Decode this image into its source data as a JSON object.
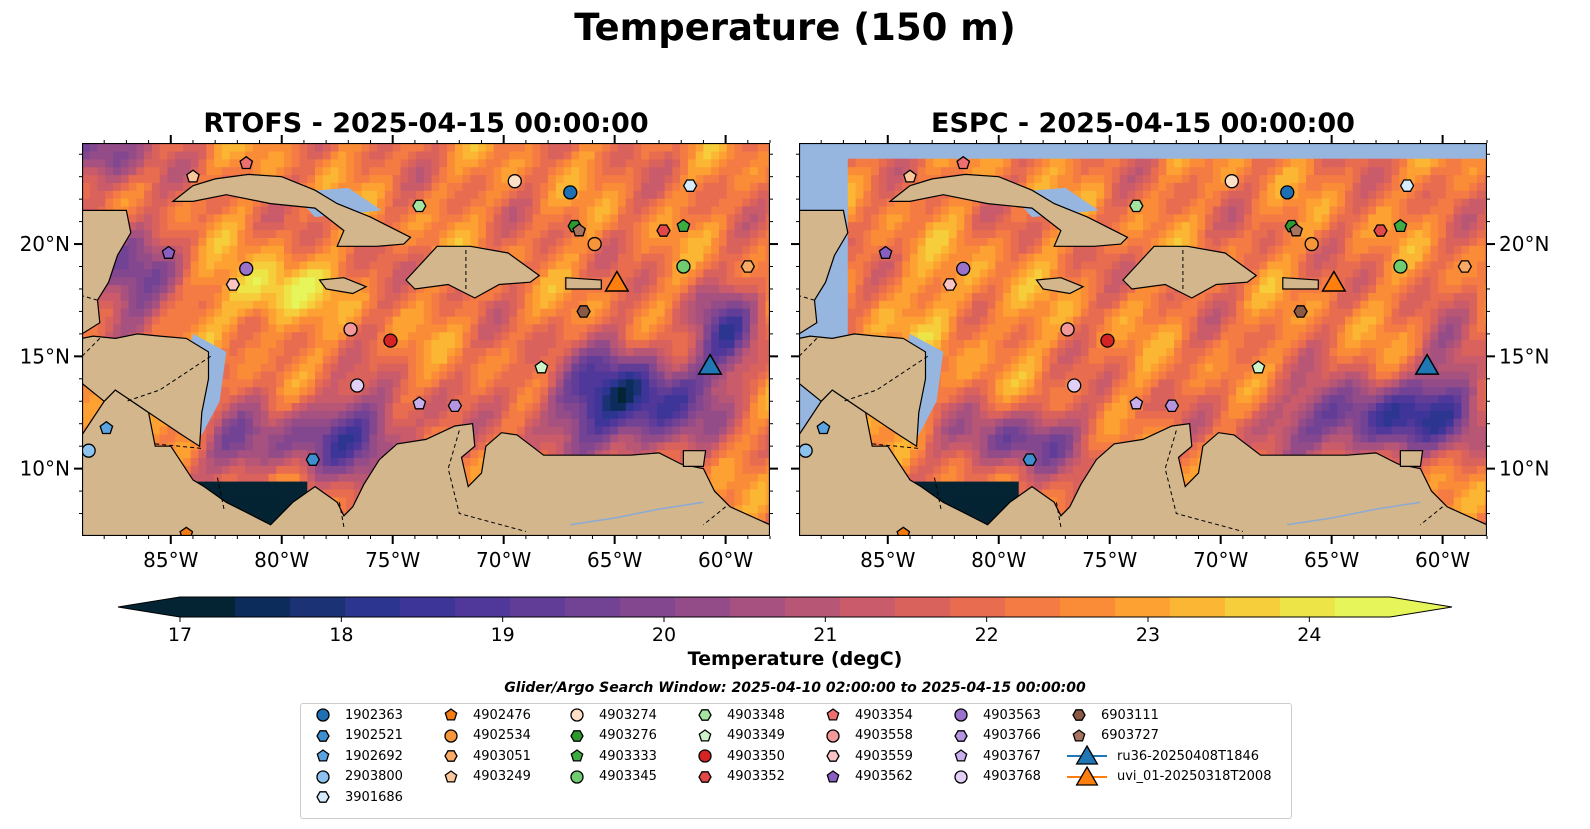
{
  "title": "Temperature (150 m)",
  "panels": [
    {
      "title": "RTOFS - 2025-04-15 00:00:00"
    },
    {
      "title": "ESPC - 2025-04-15 00:00:00"
    }
  ],
  "map_extent": {
    "lon": [
      -89,
      -58
    ],
    "lat": [
      7,
      24.5
    ]
  },
  "lon_ticks": [
    "85°W",
    "80°W",
    "75°W",
    "70°W",
    "65°W",
    "60°W"
  ],
  "lat_ticks": [
    "20°N",
    "15°N",
    "10°N"
  ],
  "colorbar": {
    "label": "Temperature (degC)",
    "ticks": [
      "17",
      "18",
      "19",
      "20",
      "21",
      "22",
      "23",
      "24"
    ],
    "range": [
      17,
      24.5
    ],
    "extend": "both",
    "colormap": "thermal",
    "colors": [
      "#042333",
      "#0c2d5b",
      "#1b3275",
      "#2c3690",
      "#3e3599",
      "#50389a",
      "#613d98",
      "#724295",
      "#82478f",
      "#944c88",
      "#a6517f",
      "#b75675",
      "#c95b6a",
      "#d9625d",
      "#e86c4f",
      "#f47b43",
      "#fa8c38",
      "#fca132",
      "#fbb733",
      "#f6cd3b",
      "#ede447",
      "#e6f55a"
    ]
  },
  "legend": {
    "title": "Glider/Argo Search Window: 2025-04-10 02:00:00 to 2025-04-15 00:00:00",
    "entries": [
      {
        "label": "1902363",
        "marker": "circle",
        "color": "#1f6fb3"
      },
      {
        "label": "1902521",
        "marker": "hexagon",
        "color": "#3d8fd0"
      },
      {
        "label": "1902692",
        "marker": "pentagon",
        "color": "#5aa3e0"
      },
      {
        "label": "2903800",
        "marker": "circle",
        "color": "#8ec2ee"
      },
      {
        "label": "3901686",
        "marker": "hexagon",
        "color": "#d6ebfb"
      },
      {
        "label": "4902476",
        "marker": "pentagon",
        "color": "#f47b12"
      },
      {
        "label": "4902534",
        "marker": "circle",
        "color": "#f7953a"
      },
      {
        "label": "4903051",
        "marker": "hexagon",
        "color": "#f9ab65"
      },
      {
        "label": "4903249",
        "marker": "pentagon",
        "color": "#fbc79a"
      },
      {
        "label": "4903274",
        "marker": "circle",
        "color": "#fde0c5"
      },
      {
        "label": "4903276",
        "marker": "hexagon",
        "color": "#2e9a2e"
      },
      {
        "label": "4903333",
        "marker": "pentagon",
        "color": "#3eac44"
      },
      {
        "label": "4903345",
        "marker": "circle",
        "color": "#6fcc6f"
      },
      {
        "label": "4903348",
        "marker": "hexagon",
        "color": "#a4e3a0"
      },
      {
        "label": "4903349",
        "marker": "pentagon",
        "color": "#cdf3c8"
      },
      {
        "label": "4903350",
        "marker": "circle",
        "color": "#d62424"
      },
      {
        "label": "4903352",
        "marker": "hexagon",
        "color": "#e24848"
      },
      {
        "label": "4903354",
        "marker": "pentagon",
        "color": "#ee6f6f"
      },
      {
        "label": "4903558",
        "marker": "circle",
        "color": "#f49999"
      },
      {
        "label": "4903559",
        "marker": "hexagon",
        "color": "#f9c4c4"
      },
      {
        "label": "4903562",
        "marker": "pentagon",
        "color": "#8a5fc4"
      },
      {
        "label": "4903563",
        "marker": "circle",
        "color": "#9a72cc"
      },
      {
        "label": "4903766",
        "marker": "hexagon",
        "color": "#b595e0"
      },
      {
        "label": "4903767",
        "marker": "pentagon",
        "color": "#c9b0ec"
      },
      {
        "label": "4903768",
        "marker": "circle",
        "color": "#e2cff6"
      },
      {
        "label": "6903111",
        "marker": "hexagon",
        "color": "#8b5a44"
      },
      {
        "label": "6903727",
        "marker": "pentagon",
        "color": "#a87460"
      },
      {
        "label": "ru36-20250408T1846",
        "marker": "triangle",
        "color": "#1f77b4"
      },
      {
        "label": "uvi_01-20250318T2008",
        "marker": "triangle",
        "color": "#ff7f0e"
      }
    ]
  },
  "observations": [
    {
      "lon": -67.0,
      "lat": 22.3,
      "id": 0
    },
    {
      "lon": -88.7,
      "lat": 10.8,
      "id": 3
    },
    {
      "lon": -87.9,
      "lat": 11.8,
      "id": 2
    },
    {
      "lon": -84.3,
      "lat": 7.1,
      "id": 5
    },
    {
      "lon": -84.0,
      "lat": 23.0,
      "id": 8
    },
    {
      "lon": -85.1,
      "lat": 19.6,
      "id": 20
    },
    {
      "lon": -81.6,
      "lat": 18.9,
      "id": 21
    },
    {
      "lon": -82.2,
      "lat": 18.2,
      "id": 19
    },
    {
      "lon": -81.6,
      "lat": 23.6,
      "id": 17
    },
    {
      "lon": -73.8,
      "lat": 21.7,
      "id": 13
    },
    {
      "lon": -69.5,
      "lat": 22.8,
      "id": 9
    },
    {
      "lon": -66.8,
      "lat": 20.8,
      "id": 10
    },
    {
      "lon": -66.6,
      "lat": 20.6,
      "id": 26
    },
    {
      "lon": -65.9,
      "lat": 20.0,
      "id": 6
    },
    {
      "lon": -62.8,
      "lat": 20.6,
      "id": 16
    },
    {
      "lon": -61.9,
      "lat": 20.8,
      "id": 11
    },
    {
      "lon": -61.9,
      "lat": 19.0,
      "id": 12
    },
    {
      "lon": -59.0,
      "lat": 19.0,
      "id": 7
    },
    {
      "lon": -61.6,
      "lat": 22.6,
      "id": 4
    },
    {
      "lon": -76.9,
      "lat": 16.2,
      "id": 18
    },
    {
      "lon": -75.1,
      "lat": 15.7,
      "id": 15
    },
    {
      "lon": -76.6,
      "lat": 13.7,
      "id": 24
    },
    {
      "lon": -66.4,
      "lat": 17.0,
      "id": 25
    },
    {
      "lon": -68.3,
      "lat": 14.5,
      "id": 14
    },
    {
      "lon": -73.8,
      "lat": 12.9,
      "id": 23
    },
    {
      "lon": -72.2,
      "lat": 12.8,
      "id": 22
    },
    {
      "lon": -78.6,
      "lat": 10.4,
      "id": 1
    },
    {
      "lon": -64.9,
      "lat": 18.2,
      "id": 28
    },
    {
      "lon": -60.7,
      "lat": 14.5,
      "id": 27
    }
  ]
}
